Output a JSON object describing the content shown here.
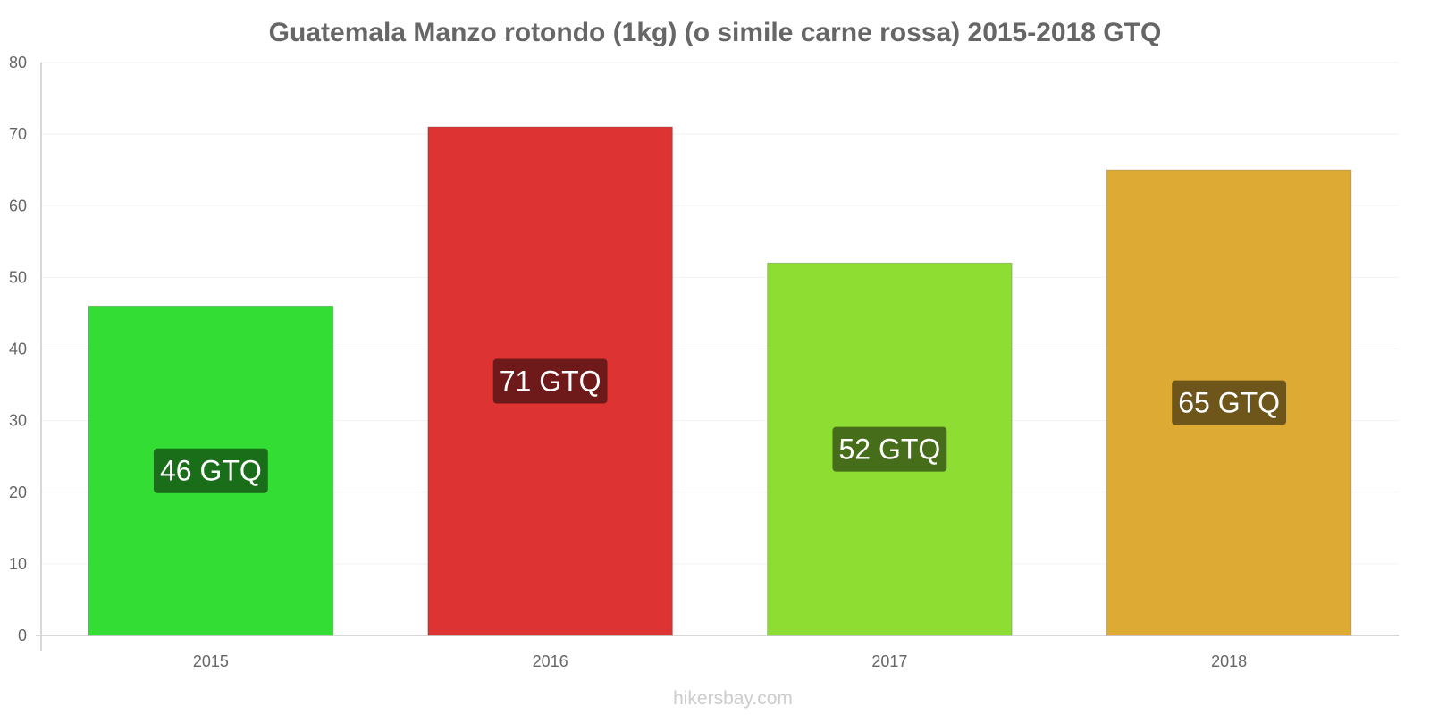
{
  "chart_data": {
    "type": "bar",
    "title": "Guatemala Manzo rotondo (1kg) (o simile carne rossa) 2015-2018 GTQ",
    "categories": [
      "2015",
      "2016",
      "2017",
      "2018"
    ],
    "values": [
      46,
      71,
      52,
      65
    ],
    "data_labels": [
      "46 GTQ",
      "71 GTQ",
      "52 GTQ",
      "65 GTQ"
    ],
    "bar_colors": [
      "#33dd33",
      "#dd3333",
      "#8ddd33",
      "#ddaa33"
    ],
    "label_bg_colors": [
      "#1a6e1a",
      "#6e1a1a",
      "#466e1a",
      "#6e551a"
    ],
    "ylim": [
      0,
      80
    ],
    "yticks": [
      0,
      10,
      20,
      30,
      40,
      50,
      60,
      70,
      80
    ],
    "xlabel": "",
    "ylabel": "",
    "grid": true,
    "legend": "none"
  },
  "watermark": "hikersbay.com"
}
